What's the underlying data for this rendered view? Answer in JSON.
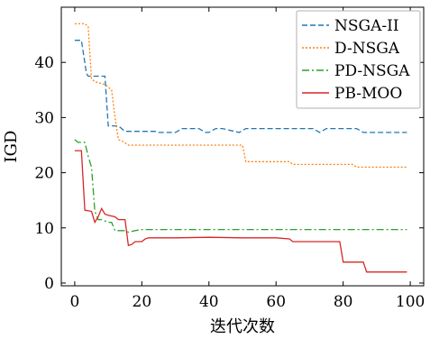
{
  "chart_data": {
    "type": "line",
    "xlabel": "迭代次数",
    "ylabel": "IGD",
    "xlim": [
      -4,
      104
    ],
    "ylim": [
      -0.5,
      50
    ],
    "xticks": [
      0,
      20,
      40,
      60,
      80,
      100
    ],
    "yticks": [
      0,
      10,
      20,
      30,
      40
    ],
    "grid": false,
    "legend_position": "top-right",
    "series": [
      {
        "name": "NSGA-II",
        "color": "#1f77b4",
        "dash": "6,3",
        "x": [
          0,
          2,
          3.5,
          4,
          9,
          10,
          13,
          15,
          24,
          25,
          26,
          30,
          32,
          37,
          39,
          40,
          42,
          44,
          49,
          51,
          71,
          73,
          75,
          84,
          86,
          99
        ],
        "y": [
          44,
          44,
          38,
          37.5,
          37.5,
          28.5,
          28.5,
          27.5,
          27.5,
          27.3,
          27.3,
          27.3,
          28,
          28,
          27.3,
          27.3,
          28,
          28,
          27.3,
          28,
          28,
          27.3,
          28,
          28,
          27.3,
          27.3
        ]
      },
      {
        "name": "D-NSGA",
        "color": "#ff7f0e",
        "dash": "2,2",
        "x": [
          0,
          3,
          4,
          5,
          6,
          9,
          10,
          11,
          12,
          13,
          14,
          16,
          18,
          50,
          51,
          64,
          65,
          83,
          84,
          99
        ],
        "y": [
          47,
          47,
          46.5,
          37,
          36.5,
          36,
          35.5,
          35,
          30,
          26,
          25.8,
          25,
          25,
          25,
          22,
          22,
          21.5,
          21.5,
          21,
          21
        ]
      },
      {
        "name": "PD-NSGA",
        "color": "#2ca02c",
        "dash": "8,3,2,3",
        "x": [
          0,
          1,
          3,
          4,
          5,
          6,
          7,
          8,
          10,
          11,
          12,
          13,
          15,
          16,
          18,
          20,
          99
        ],
        "y": [
          26,
          25.5,
          25.5,
          23,
          21,
          13,
          11.5,
          11.5,
          11,
          11,
          9.5,
          9.5,
          9.5,
          9.2,
          9.5,
          9.7,
          9.7
        ]
      },
      {
        "name": "PB-MOO",
        "color": "#d62728",
        "dash": "",
        "x": [
          0,
          2,
          3,
          5,
          6,
          7,
          8,
          9,
          10,
          12,
          13,
          15,
          16,
          17,
          18,
          20,
          21,
          22,
          30,
          40,
          50,
          60,
          64,
          65,
          75,
          79,
          80,
          86,
          87,
          99
        ],
        "y": [
          24,
          24,
          13.2,
          13,
          11,
          12,
          13.5,
          12.5,
          12.3,
          12,
          11.5,
          11.5,
          6.8,
          7,
          7.5,
          7.5,
          8,
          8.2,
          8.2,
          8.3,
          8.2,
          8.2,
          8,
          7.5,
          7.5,
          7.5,
          3.8,
          3.8,
          2,
          2
        ]
      }
    ]
  }
}
